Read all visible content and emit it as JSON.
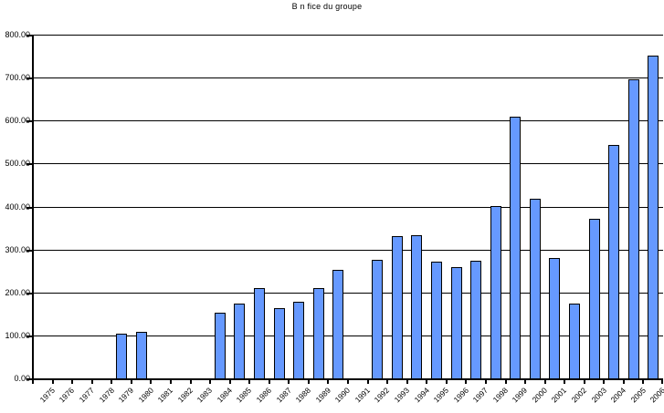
{
  "title": "B n fice du groupe",
  "chart_data": {
    "type": "bar",
    "title": "B n fice du groupe",
    "categories": [
      "1975",
      "1976",
      "1977",
      "1978",
      "1979",
      "1980",
      "1981",
      "1982",
      "1983",
      "1984",
      "1985",
      "1986",
      "1987",
      "1988",
      "1989",
      "1990",
      "1991",
      "1992",
      "1993",
      "1994",
      "1995",
      "1996",
      "1997",
      "1998",
      "1999",
      "2000",
      "2001",
      "2002",
      "2003",
      "2004",
      "2005",
      "2006"
    ],
    "values": [
      0,
      0,
      0,
      0,
      103,
      108,
      0,
      0,
      0,
      152,
      173,
      210,
      164,
      179,
      210,
      252,
      0,
      276,
      330,
      334,
      271,
      258,
      274,
      400,
      610,
      418,
      281,
      175,
      372,
      543,
      696,
      752
    ],
    "xlabel": "",
    "ylabel": "",
    "ylim": [
      0,
      800
    ],
    "y_tick_step": 100,
    "y_tick_labels": [
      "0.00",
      "100.00",
      "200.00",
      "300.00",
      "400.00",
      "500.00",
      "600.00",
      "700.00",
      "800.00"
    ],
    "grid": true,
    "legend": "none",
    "bar_color": "#6699FF",
    "bar_border_color": "#000000",
    "axis_color": "#000000",
    "background_color": "#FFFFFF"
  }
}
